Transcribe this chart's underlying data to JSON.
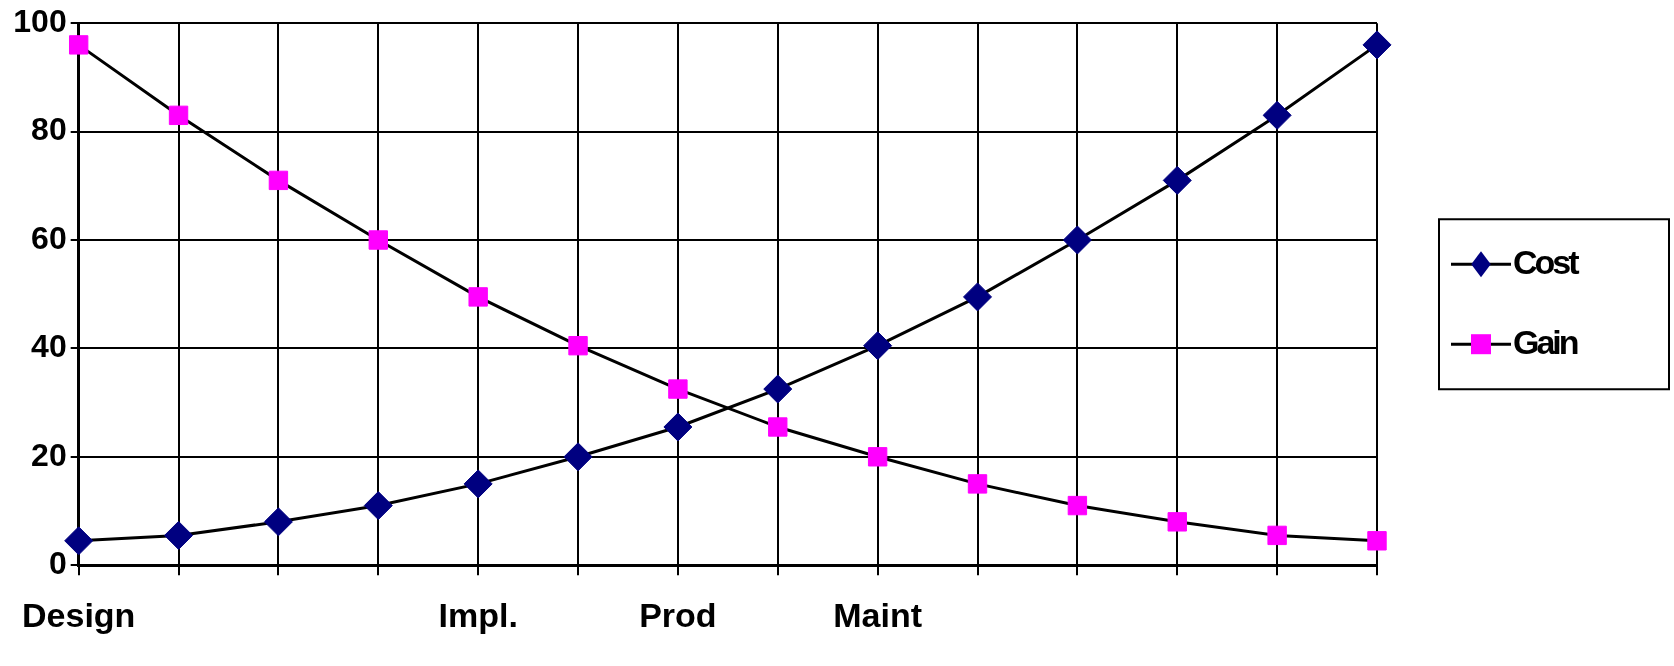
{
  "chart_data": {
    "type": "line",
    "categories": [
      "Design",
      null,
      null,
      null,
      "Impl.",
      null,
      "Prod",
      null,
      "Maint",
      null,
      null,
      null,
      null,
      null
    ],
    "series": [
      {
        "name": "Cost",
        "color": "#000000",
        "colors": [
          "#000080",
          "#000080",
          "#000080",
          "#000080",
          "#000080",
          "#000080",
          "#000080",
          "#000080",
          "#000080",
          "#000080",
          "#000080",
          "#000080",
          "#000080",
          "#000080"
        ],
        "marker": "diamond",
        "values": [
          4.5,
          5.5,
          8,
          11,
          15,
          20,
          25.5,
          32.5,
          40.5,
          49.5,
          60,
          71,
          83,
          96
        ]
      },
      {
        "name": "Gain",
        "color": "#000000",
        "colors": [
          "#ff00ff",
          "#ff00ff",
          "#ff00ff",
          "#ff00ff",
          "#ff00ff",
          "#ff00ff",
          "#ff00ff",
          "#ff00ff",
          "#ff00ff",
          "#ff00ff",
          "#ff00ff",
          "#ff00ff",
          "#ff00ff",
          "#ff00ff"
        ],
        "marker": "square",
        "values": [
          96,
          83,
          71,
          60,
          49.5,
          40.5,
          32.5,
          25.5,
          20,
          15,
          11,
          8,
          5.5,
          4.5
        ]
      }
    ],
    "ylim": [
      0,
      100
    ],
    "yticks": [
      0,
      20,
      40,
      60,
      80,
      100
    ],
    "grid": true,
    "legend": "right",
    "line_style": "solid"
  }
}
